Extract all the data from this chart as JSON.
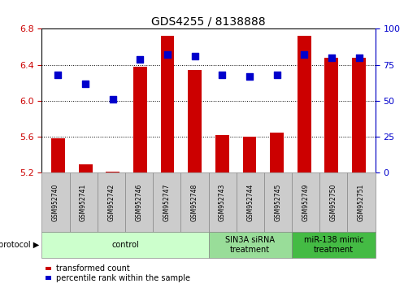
{
  "title": "GDS4255 / 8138888",
  "samples": [
    "GSM952740",
    "GSM952741",
    "GSM952742",
    "GSM952746",
    "GSM952747",
    "GSM952748",
    "GSM952743",
    "GSM952744",
    "GSM952745",
    "GSM952749",
    "GSM952750",
    "GSM952751"
  ],
  "transformed_count": [
    5.58,
    5.29,
    5.21,
    6.38,
    6.72,
    6.34,
    5.62,
    5.6,
    5.65,
    6.72,
    6.48,
    6.48
  ],
  "percentile_rank": [
    68,
    62,
    51,
    79,
    82,
    81,
    68,
    67,
    68,
    82,
    80,
    80
  ],
  "groups": [
    {
      "label": "control",
      "start": 0,
      "end": 6,
      "color": "#ccffcc",
      "text_color": "#000000"
    },
    {
      "label": "SIN3A siRNA\ntreatment",
      "start": 6,
      "end": 9,
      "color": "#99dd99",
      "text_color": "#000000"
    },
    {
      "label": "miR-138 mimic\ntreatment",
      "start": 9,
      "end": 12,
      "color": "#44bb44",
      "text_color": "#000000"
    }
  ],
  "ylim_left": [
    5.2,
    6.8
  ],
  "ylim_right": [
    0,
    100
  ],
  "yticks_left": [
    5.2,
    5.6,
    6.0,
    6.4,
    6.8
  ],
  "yticks_right": [
    0,
    25,
    50,
    75,
    100
  ],
  "bar_color": "#cc0000",
  "dot_color": "#0000cc",
  "bar_width": 0.5,
  "dot_size": 28,
  "grid_color": "#000000",
  "sample_box_color": "#cccccc",
  "legend_items": [
    {
      "label": "transformed count",
      "color": "#cc0000"
    },
    {
      "label": "percentile rank within the sample",
      "color": "#0000cc"
    }
  ]
}
